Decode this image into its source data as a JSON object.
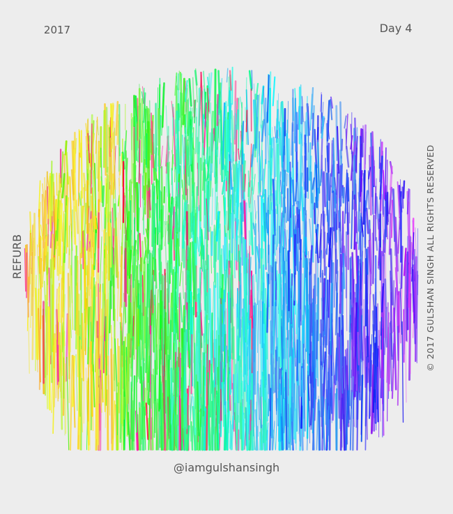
{
  "header": {
    "year": "2017",
    "day": "Day 4"
  },
  "side": {
    "left": "REFURB",
    "right": "© 2017 GULSHAN SINGH ALL RIGHTS RESERVED"
  },
  "footer": {
    "handle": "@iamgulshansingh"
  }
}
